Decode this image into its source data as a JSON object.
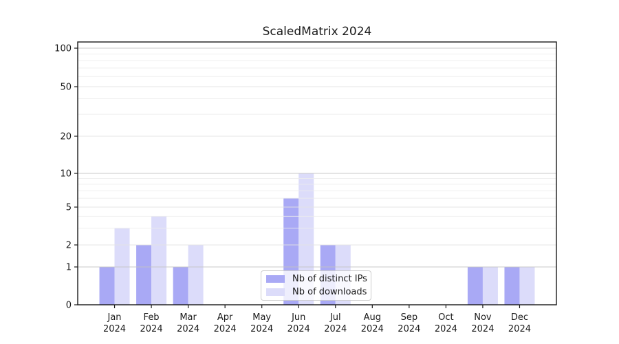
{
  "chart_data": {
    "type": "bar",
    "title": "ScaledMatrix 2024",
    "categories": [
      "Jan",
      "Feb",
      "Mar",
      "Apr",
      "May",
      "Jun",
      "Jul",
      "Aug",
      "Sep",
      "Oct",
      "Nov",
      "Dec"
    ],
    "category_year": "2024",
    "series": [
      {
        "name": "Nb of distinct IPs",
        "color": "#a9a9f5",
        "values": [
          1,
          2,
          1,
          0,
          0,
          6,
          2,
          0,
          0,
          0,
          1,
          1
        ]
      },
      {
        "name": "Nb of downloads",
        "color": "#dcdcfa",
        "values": [
          3,
          4,
          2,
          0,
          0,
          10,
          2,
          0,
          0,
          0,
          1,
          1
        ]
      }
    ],
    "y_ticks": [
      0,
      1,
      2,
      5,
      10,
      20,
      50,
      100
    ],
    "y_minor_gridlines": [
      3,
      4,
      6,
      7,
      8,
      9,
      30,
      40,
      60,
      70,
      80,
      90
    ],
    "ylim": [
      0,
      100
    ],
    "y_scale": "log-like custom (0,1,2,5,10,20,50,100)",
    "grid": true,
    "legend_position": "lower center",
    "colors": {
      "axis": "#1a1a1a",
      "text": "#1a1a1a",
      "major_gridline": "#c3c3c3",
      "mid_gridline": "#e2e2e2",
      "minor_gridline": "#ececec",
      "background": "#ffffff"
    }
  }
}
